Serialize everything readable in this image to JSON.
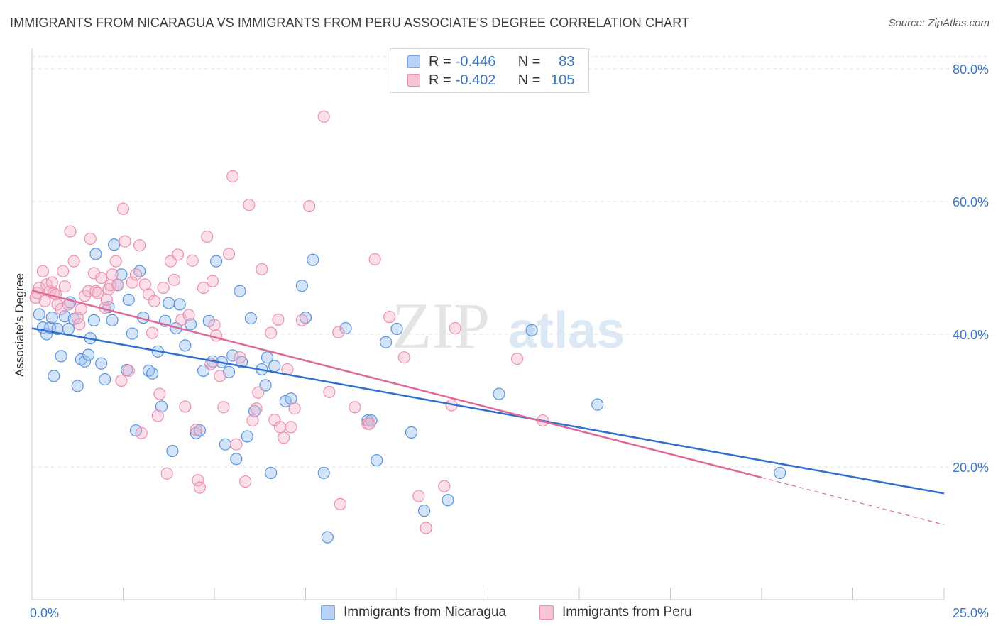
{
  "title": "IMMIGRANTS FROM NICARAGUA VS IMMIGRANTS FROM PERU ASSOCIATE'S DEGREE CORRELATION CHART",
  "source": "Source: ZipAtlas.com",
  "watermark": {
    "zip": "ZIP",
    "atlas": "atlas"
  },
  "legend": [
    {
      "swatch_color": "#b8d3f5",
      "border_color": "#7ba7e0",
      "r_label": "R =",
      "r_value": "-0.446",
      "n_label": "N =",
      "n_value": "83"
    },
    {
      "swatch_color": "#f8c3d3",
      "border_color": "#ea8fae",
      "r_label": "R =",
      "r_value": "-0.402",
      "n_label": "N =",
      "n_value": "105"
    }
  ],
  "bottom_legend": [
    {
      "label": "Immigrants from Nicaragua",
      "swatch_color": "#b8d3f5",
      "border_color": "#7ba7e0"
    },
    {
      "label": "Immigrants from Peru",
      "swatch_color": "#f8c3d3",
      "border_color": "#ea8fae"
    }
  ],
  "chart_data": {
    "type": "scatter",
    "title": "IMMIGRANTS FROM NICARAGUA VS IMMIGRANTS FROM PERU ASSOCIATE'S DEGREE CORRELATION CHART",
    "xlabel": "",
    "ylabel": "Associate's Degree",
    "xlim": [
      0,
      25
    ],
    "ylim": [
      0,
      80
    ],
    "x_tick_labels": [
      "0.0%",
      "25.0%"
    ],
    "y_tick_labels": [
      "20.0%",
      "40.0%",
      "60.0%",
      "80.0%"
    ],
    "y_ticks": [
      20,
      40,
      60,
      80
    ],
    "grid": true,
    "colors": {
      "nicaragua": "#4f8fdc",
      "peru": "#ea7ca0",
      "nicaragua_line": "#2f6fd0",
      "peru_line": "#e0679a",
      "axis_text": "#3a74c4"
    },
    "series": [
      {
        "name": "Immigrants from Nicaragua",
        "trend": {
          "x": [
            0,
            25
          ],
          "y": [
            40.9,
            16.0
          ]
        },
        "points": [
          [
            0.2,
            43.0
          ],
          [
            0.3,
            41.0
          ],
          [
            0.4,
            40.0
          ],
          [
            0.5,
            41.0
          ],
          [
            0.55,
            42.5
          ],
          [
            0.6,
            33.7
          ],
          [
            0.7,
            40.8
          ],
          [
            0.8,
            36.7
          ],
          [
            0.9,
            42.7
          ],
          [
            1.0,
            40.8
          ],
          [
            1.05,
            44.8
          ],
          [
            1.15,
            42.3
          ],
          [
            1.25,
            32.2
          ],
          [
            1.35,
            36.2
          ],
          [
            1.45,
            35.9
          ],
          [
            1.55,
            36.9
          ],
          [
            1.6,
            39.4
          ],
          [
            1.7,
            42.1
          ],
          [
            1.75,
            52.1
          ],
          [
            1.9,
            35.6
          ],
          [
            2.0,
            33.2
          ],
          [
            2.1,
            44.1
          ],
          [
            2.2,
            42.1
          ],
          [
            2.25,
            53.5
          ],
          [
            2.35,
            47.4
          ],
          [
            2.45,
            49.0
          ],
          [
            2.6,
            34.6
          ],
          [
            2.65,
            45.2
          ],
          [
            2.75,
            40.1
          ],
          [
            2.85,
            25.5
          ],
          [
            2.95,
            49.5
          ],
          [
            3.05,
            42.5
          ],
          [
            3.2,
            34.5
          ],
          [
            3.3,
            34.1
          ],
          [
            3.45,
            37.4
          ],
          [
            3.55,
            29.1
          ],
          [
            3.65,
            42.0
          ],
          [
            3.75,
            44.7
          ],
          [
            3.85,
            22.4
          ],
          [
            3.95,
            40.9
          ],
          [
            4.05,
            44.5
          ],
          [
            4.2,
            38.3
          ],
          [
            4.35,
            41.5
          ],
          [
            4.5,
            25.1
          ],
          [
            4.6,
            25.5
          ],
          [
            4.7,
            34.5
          ],
          [
            4.85,
            42.0
          ],
          [
            4.95,
            35.9
          ],
          [
            5.05,
            51.0
          ],
          [
            5.2,
            35.8
          ],
          [
            5.3,
            23.4
          ],
          [
            5.4,
            34.3
          ],
          [
            5.5,
            36.8
          ],
          [
            5.6,
            21.2
          ],
          [
            5.7,
            46.5
          ],
          [
            5.75,
            35.8
          ],
          [
            5.9,
            24.6
          ],
          [
            6.0,
            42.4
          ],
          [
            6.1,
            28.4
          ],
          [
            6.3,
            34.7
          ],
          [
            6.4,
            32.3
          ],
          [
            6.45,
            36.5
          ],
          [
            6.55,
            19.1
          ],
          [
            6.65,
            35.2
          ],
          [
            6.95,
            29.9
          ],
          [
            7.1,
            30.3
          ],
          [
            7.4,
            47.3
          ],
          [
            7.5,
            42.5
          ],
          [
            7.7,
            51.2
          ],
          [
            8.0,
            19.1
          ],
          [
            8.1,
            9.4
          ],
          [
            8.6,
            40.9
          ],
          [
            9.2,
            27.0
          ],
          [
            9.3,
            27.0
          ],
          [
            9.45,
            21.0
          ],
          [
            9.7,
            38.8
          ],
          [
            10.0,
            40.8
          ],
          [
            10.4,
            25.2
          ],
          [
            10.75,
            13.4
          ],
          [
            11.4,
            15.0
          ],
          [
            12.8,
            31.0
          ],
          [
            13.7,
            40.6
          ],
          [
            15.5,
            29.4
          ],
          [
            20.5,
            19.1
          ]
        ]
      },
      {
        "name": "Immigrants from Peru",
        "trend": {
          "x": [
            0,
            20.0
          ],
          "y": [
            46.6,
            18.4
          ],
          "dashed_to": {
            "x": 25,
            "y": 11.3
          }
        },
        "points": [
          [
            0.1,
            45.5
          ],
          [
            0.15,
            46.2
          ],
          [
            0.2,
            47.0
          ],
          [
            0.3,
            49.5
          ],
          [
            0.35,
            45.0
          ],
          [
            0.4,
            47.5
          ],
          [
            0.5,
            46.5
          ],
          [
            0.55,
            47.8
          ],
          [
            0.6,
            46.2
          ],
          [
            0.65,
            46.0
          ],
          [
            0.7,
            44.5
          ],
          [
            0.8,
            43.8
          ],
          [
            0.85,
            49.5
          ],
          [
            0.9,
            47.2
          ],
          [
            1.0,
            44.5
          ],
          [
            1.05,
            55.5
          ],
          [
            1.15,
            51.0
          ],
          [
            1.25,
            42.5
          ],
          [
            1.3,
            41.5
          ],
          [
            1.35,
            43.8
          ],
          [
            1.45,
            45.8
          ],
          [
            1.55,
            46.5
          ],
          [
            1.6,
            54.4
          ],
          [
            1.7,
            49.2
          ],
          [
            1.75,
            46.5
          ],
          [
            1.8,
            46.2
          ],
          [
            1.9,
            48.5
          ],
          [
            2.0,
            44.0
          ],
          [
            2.05,
            45.2
          ],
          [
            2.1,
            46.8
          ],
          [
            2.15,
            47.4
          ],
          [
            2.2,
            49.0
          ],
          [
            2.3,
            51.0
          ],
          [
            2.35,
            47.5
          ],
          [
            2.45,
            33.0
          ],
          [
            2.5,
            58.9
          ],
          [
            2.55,
            54.0
          ],
          [
            2.65,
            34.5
          ],
          [
            2.75,
            47.8
          ],
          [
            2.85,
            49.0
          ],
          [
            2.95,
            53.4
          ],
          [
            3.0,
            25.1
          ],
          [
            3.1,
            47.5
          ],
          [
            3.2,
            46.0
          ],
          [
            3.3,
            40.2
          ],
          [
            3.35,
            45.0
          ],
          [
            3.45,
            27.7
          ],
          [
            3.5,
            31.0
          ],
          [
            3.6,
            47.0
          ],
          [
            3.7,
            19.0
          ],
          [
            3.8,
            51.0
          ],
          [
            3.9,
            48.2
          ],
          [
            4.0,
            52.0
          ],
          [
            4.1,
            42.2
          ],
          [
            4.2,
            29.1
          ],
          [
            4.3,
            42.9
          ],
          [
            4.4,
            51.1
          ],
          [
            4.5,
            25.6
          ],
          [
            4.55,
            18.0
          ],
          [
            4.6,
            16.9
          ],
          [
            4.7,
            47.0
          ],
          [
            4.8,
            54.7
          ],
          [
            4.9,
            35.5
          ],
          [
            4.95,
            48.0
          ],
          [
            5.0,
            41.4
          ],
          [
            5.05,
            39.8
          ],
          [
            5.15,
            33.7
          ],
          [
            5.25,
            29.0
          ],
          [
            5.4,
            52.1
          ],
          [
            5.5,
            63.8
          ],
          [
            5.6,
            23.4
          ],
          [
            5.7,
            36.5
          ],
          [
            5.85,
            17.8
          ],
          [
            5.95,
            59.5
          ],
          [
            6.05,
            27.0
          ],
          [
            6.15,
            28.8
          ],
          [
            6.2,
            31.2
          ],
          [
            6.3,
            49.8
          ],
          [
            6.55,
            40.2
          ],
          [
            6.65,
            27.1
          ],
          [
            6.75,
            42.2
          ],
          [
            6.8,
            26.0
          ],
          [
            6.9,
            24.4
          ],
          [
            7.0,
            34.7
          ],
          [
            7.1,
            26.0
          ],
          [
            7.2,
            28.8
          ],
          [
            7.4,
            42.1
          ],
          [
            7.6,
            59.3
          ],
          [
            8.0,
            72.8
          ],
          [
            8.15,
            31.3
          ],
          [
            8.4,
            40.3
          ],
          [
            8.45,
            14.4
          ],
          [
            8.85,
            29.0
          ],
          [
            9.2,
            26.5
          ],
          [
            9.25,
            26.5
          ],
          [
            9.4,
            51.3
          ],
          [
            9.8,
            42.6
          ],
          [
            10.2,
            36.5
          ],
          [
            10.6,
            15.6
          ],
          [
            10.8,
            10.8
          ],
          [
            11.3,
            17.1
          ],
          [
            11.5,
            29.3
          ],
          [
            11.6,
            40.9
          ],
          [
            13.3,
            36.3
          ],
          [
            14.0,
            27.0
          ]
        ]
      }
    ]
  }
}
